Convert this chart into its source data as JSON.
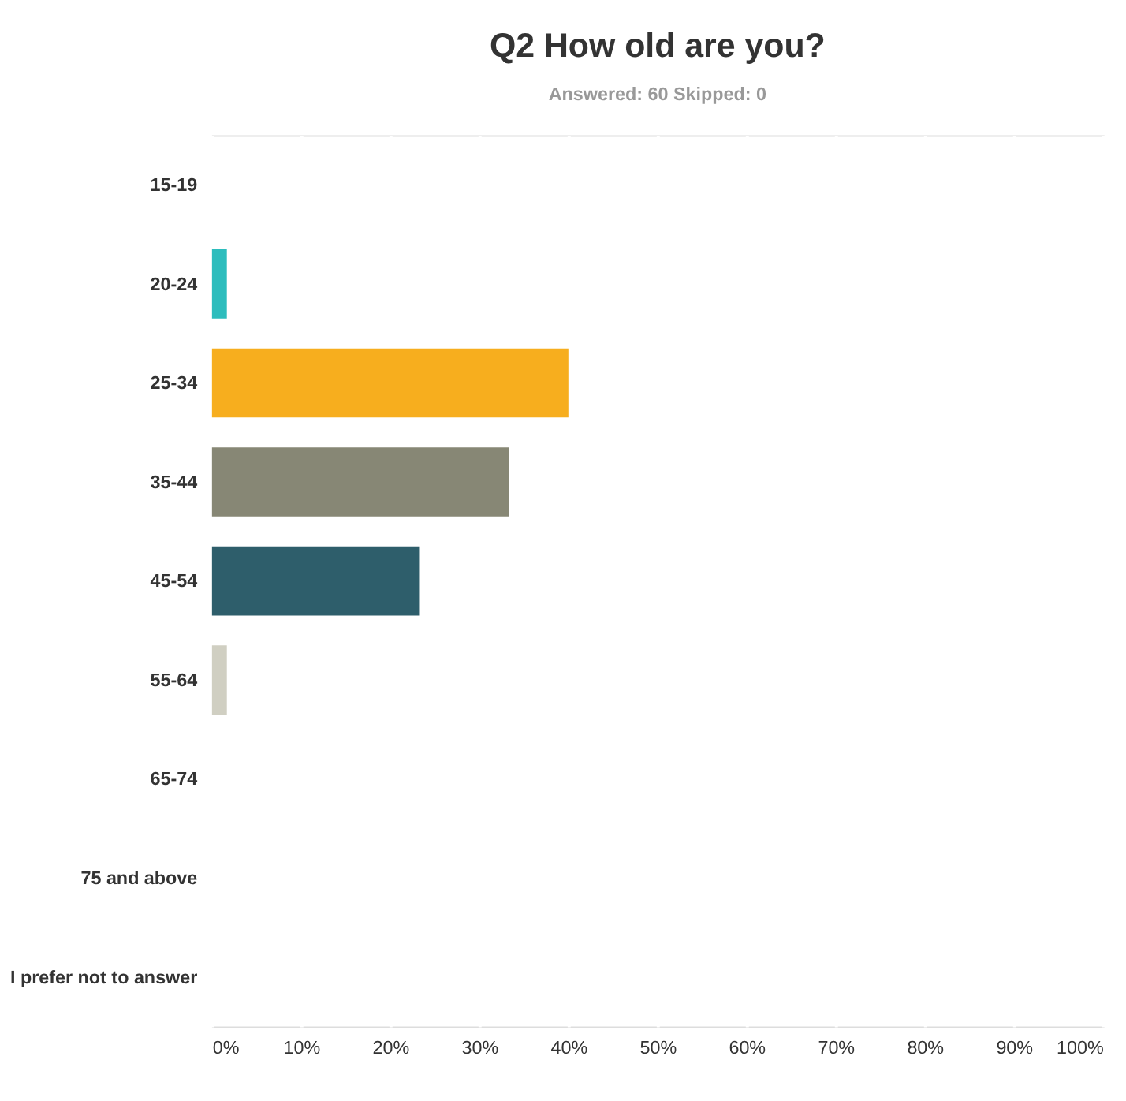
{
  "chart_data": {
    "type": "bar",
    "orientation": "horizontal",
    "title": "Q2 How old are you?",
    "subtitle": "Answered: 60    Skipped: 0",
    "categories": [
      "15-19",
      "20-24",
      "25-34",
      "35-44",
      "45-54",
      "55-64",
      "65-74",
      "75 and above",
      "I prefer not to answer"
    ],
    "values": [
      0,
      1.67,
      40,
      33.33,
      23.33,
      1.67,
      0,
      0,
      0
    ],
    "colors": [
      "#1b9ad6",
      "#2dbdbd",
      "#f7ae1e",
      "#878775",
      "#2e5e6b",
      "#d0cfc2",
      "#b4a58a",
      "#6a9a3c",
      "#9d6aa8"
    ],
    "xlim": [
      0,
      100
    ],
    "xticks": [
      {
        "value": 0,
        "label": "0%"
      },
      {
        "value": 10,
        "label": "10%"
      },
      {
        "value": 20,
        "label": "20%"
      },
      {
        "value": 30,
        "label": "30%"
      },
      {
        "value": 40,
        "label": "40%"
      },
      {
        "value": 50,
        "label": "50%"
      },
      {
        "value": 60,
        "label": "60%"
      },
      {
        "value": 70,
        "label": "70%"
      },
      {
        "value": 80,
        "label": "80%"
      },
      {
        "value": 90,
        "label": "90%"
      },
      {
        "value": 100,
        "label": "100%"
      }
    ],
    "grid": "x",
    "legend": false
  }
}
